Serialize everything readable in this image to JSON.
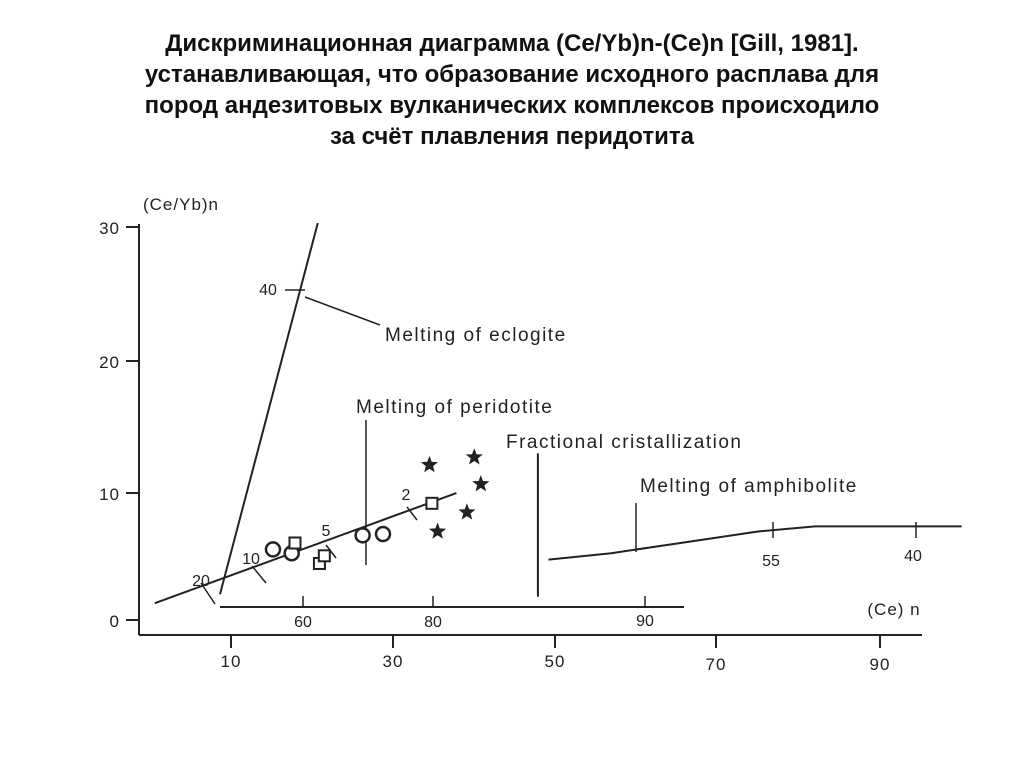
{
  "title_lines": [
    "Дискриминационная диаграмма (Ce/Yb)n-(Ce)n [Gill, 1981].",
    "устанавливающая, что образование исходного расплава для",
    "пород андезитовых вулканических комплексов происходило",
    "за счёт плавления перидотита"
  ],
  "chart_data": {
    "type": "scatter",
    "ylabel": "(Ce/Yb)n",
    "xlabel": "(Ce) n",
    "x_ticks": [
      "10",
      "30",
      "50",
      "70",
      "90"
    ],
    "y_ticks": [
      "0",
      "10",
      "20",
      "30"
    ],
    "xlim": [
      -5,
      95
    ],
    "ylim": [
      0,
      30
    ],
    "curves": [
      {
        "label": "Melting of eclogite",
        "points": [
          [
            8,
            1
          ],
          [
            20,
            30
          ]
        ],
        "marks": [
          {
            "label": "40",
            "at": [
              18.6,
              25
            ]
          }
        ]
      },
      {
        "label": "Melting of peridotite",
        "points": [
          [
            0,
            0.3
          ],
          [
            37,
            8.9
          ]
        ],
        "marks": [
          {
            "label": "20",
            "at": [
              7.7,
              2
            ]
          },
          {
            "label": "10",
            "at": [
              12.6,
              3.2
            ]
          },
          {
            "label": "5",
            "at": [
              19.1,
              4.8
            ]
          },
          {
            "label": "2",
            "at": [
              28.4,
              6.8
            ]
          }
        ]
      },
      {
        "label": "Fractional cristallization",
        "points": [
          [
            47,
            0.8
          ],
          [
            47,
            12
          ]
        ]
      },
      {
        "label": "Melting of amphibolite",
        "points": [
          [
            48.3,
            3.7
          ],
          [
            56,
            4.2
          ],
          [
            64.5,
            5
          ],
          [
            74,
            5.9
          ],
          [
            81,
            6.3
          ],
          [
            99,
            6.3
          ]
        ],
        "marks": [
          {
            "label": "55",
            "at": [
              81.3,
              6.3
            ]
          },
          {
            "label": "40",
            "at": [
              98.5,
              6.3
            ]
          }
        ]
      }
    ],
    "inner_axis_ticks": [
      "60",
      "80",
      "90"
    ],
    "series": [
      {
        "marker": "circle",
        "points": [
          [
            14.5,
            4.5
          ],
          [
            16.8,
            4.2
          ],
          [
            28,
            5.7
          ],
          [
            25.5,
            5.6
          ]
        ]
      },
      {
        "marker": "square",
        "points": [
          [
            17.2,
            5
          ],
          [
            20.2,
            3.4
          ],
          [
            20.8,
            4
          ],
          [
            34,
            8.1
          ]
        ]
      },
      {
        "marker": "star",
        "points": [
          [
            33.7,
            11.1
          ],
          [
            39.2,
            11.7
          ],
          [
            40,
            9.6
          ],
          [
            38.3,
            7.4
          ],
          [
            34.7,
            5.9
          ]
        ]
      }
    ]
  }
}
